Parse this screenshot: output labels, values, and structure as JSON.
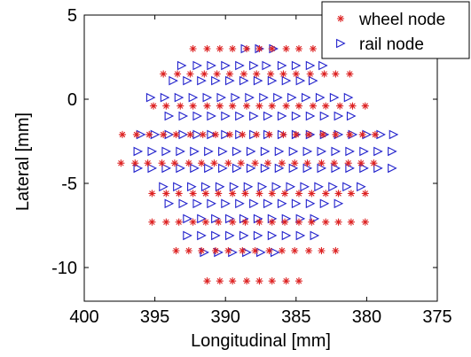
{
  "chart_data": {
    "type": "scatter",
    "xlabel": "Longitudinal [mm]",
    "ylabel": "Lateral [mm]",
    "x_reversed": true,
    "xlim": [
      375,
      400
    ],
    "ylim": [
      -12,
      5
    ],
    "xticks": [
      400,
      395,
      390,
      385,
      380,
      375
    ],
    "yticks": [
      5,
      0,
      -5,
      -10
    ],
    "grid": false,
    "legend_location": "top-right",
    "series": [
      {
        "name": "wheel node",
        "marker": "asterisk",
        "color": "#dd2222",
        "rows": [
          {
            "y": 3.0,
            "x": [
              392.3,
              391.3,
              390.4,
              389.5,
              388.5,
              387.6,
              386.7,
              385.7,
              384.8,
              383.8
            ]
          },
          {
            "y": 1.5,
            "x": [
              394.4,
              393.4,
              392.5,
              391.5,
              390.6,
              389.7,
              388.7,
              387.8,
              386.8,
              385.9,
              385.0,
              384.0,
              383.0,
              382.2,
              381.2
            ]
          },
          {
            "y": -0.4,
            "x": [
              395.1,
              394.2,
              393.2,
              392.3,
              391.3,
              390.4,
              389.5,
              388.5,
              387.6,
              386.7,
              385.7,
              384.8,
              383.8,
              382.9,
              381.9,
              381.0,
              380.1
            ]
          },
          {
            "y": -2.1,
            "x": [
              397.3,
              396.3,
              395.4,
              394.4,
              393.5,
              392.5,
              391.6,
              390.7,
              389.7,
              388.8,
              387.8,
              386.9,
              385.9,
              385.0,
              384.1,
              383.1,
              382.2,
              381.2,
              380.3,
              379.4
            ]
          },
          {
            "y": -3.8,
            "x": [
              397.4,
              396.4,
              395.5,
              394.5,
              393.6,
              392.6,
              391.7,
              390.8,
              389.8,
              388.9,
              387.9,
              387.0,
              386.0,
              385.1,
              384.2,
              383.2,
              382.3,
              381.3,
              380.4,
              379.5
            ]
          },
          {
            "y": -5.6,
            "x": [
              395.2,
              394.2,
              393.3,
              392.3,
              391.4,
              390.5,
              389.5,
              388.6,
              387.6,
              386.7,
              385.8,
              384.8,
              383.9,
              382.9,
              382.0,
              381.1,
              380.1
            ]
          },
          {
            "y": -7.3,
            "x": [
              395.2,
              394.2,
              393.3,
              392.3,
              391.4,
              390.5,
              389.5,
              388.6,
              387.6,
              386.7,
              385.8,
              384.8,
              383.9,
              382.9,
              382.0,
              381.1,
              380.1
            ]
          },
          {
            "y": -9.0,
            "x": [
              393.5,
              392.6,
              391.7,
              390.7,
              389.8,
              388.8,
              387.9,
              386.9,
              386.0,
              385.1,
              384.1,
              383.2,
              382.2
            ]
          },
          {
            "y": -10.8,
            "x": [
              391.3,
              390.4,
              389.5,
              388.5,
              387.6,
              386.7,
              385.7,
              384.8
            ]
          }
        ]
      },
      {
        "name": "rail node",
        "marker": "triangle-right",
        "color": "#2222cc",
        "rows": [
          {
            "y": 3.0,
            "x": [
              388.6,
              387.6,
              386.6
            ]
          },
          {
            "y": 2.0,
            "x": [
              393.1,
              392.0,
              391.0,
              390.0,
              389.0,
              388.0,
              387.1,
              386.0,
              385.0,
              384.0,
              383.1
            ]
          },
          {
            "y": 1.1,
            "x": [
              393.7,
              392.7,
              391.7,
              390.7,
              389.7,
              388.7,
              387.7,
              386.7,
              385.7,
              384.7,
              383.8
            ]
          },
          {
            "y": 0.1,
            "x": [
              395.3,
              394.3,
              393.3,
              392.3,
              391.3,
              390.3,
              389.3,
              388.3,
              387.3,
              386.3,
              385.3,
              384.3,
              383.3,
              382.3,
              381.3
            ]
          },
          {
            "y": -1.0,
            "x": [
              394.0,
              393.0,
              392.0,
              391.0,
              390.0,
              389.0,
              388.0,
              387.0,
              386.0,
              385.0,
              384.0,
              383.0,
              382.0,
              381.1
            ]
          },
          {
            "y": -2.1,
            "x": [
              396.0,
              395.0,
              394.0,
              393.0,
              392.0,
              391.0,
              390.0,
              389.0,
              388.0,
              387.0,
              386.0,
              385.0,
              384.0,
              383.0,
              382.0,
              381.0,
              380.0,
              379.0,
              378.1
            ]
          },
          {
            "y": -3.1,
            "x": [
              396.2,
              395.2,
              394.2,
              393.2,
              392.2,
              391.2,
              390.2,
              389.2,
              388.2,
              387.2,
              386.2,
              385.2,
              384.2,
              383.2,
              382.2,
              381.2,
              380.2,
              379.2,
              378.2
            ]
          },
          {
            "y": -4.1,
            "x": [
              396.2,
              395.2,
              394.2,
              393.2,
              392.2,
              391.2,
              390.2,
              389.2,
              388.2,
              387.2,
              386.2,
              385.2,
              384.2,
              383.2,
              382.2,
              381.2,
              380.2,
              379.2,
              378.2
            ]
          },
          {
            "y": -5.2,
            "x": [
              394.4,
              393.4,
              392.4,
              391.4,
              390.4,
              389.4,
              388.4,
              387.4,
              386.4,
              385.4,
              384.4,
              383.4,
              382.4,
              381.4,
              380.4
            ]
          },
          {
            "y": -6.2,
            "x": [
              394.0,
              393.0,
              392.0,
              391.0,
              390.0,
              389.0,
              388.0,
              387.0,
              386.0,
              385.0,
              384.0,
              383.0,
              382.0
            ]
          },
          {
            "y": -7.1,
            "x": [
              392.7,
              391.7,
              390.7,
              389.7,
              388.7,
              387.7,
              386.7,
              385.7,
              384.7,
              383.7
            ]
          },
          {
            "y": -8.1,
            "x": [
              392.7,
              391.7,
              390.7,
              389.7,
              388.7,
              387.7,
              386.7,
              385.7,
              384.7,
              383.7
            ]
          },
          {
            "y": -9.1,
            "x": [
              391.5,
              390.5,
              389.5,
              388.5,
              387.5,
              386.5
            ]
          }
        ]
      }
    ]
  }
}
